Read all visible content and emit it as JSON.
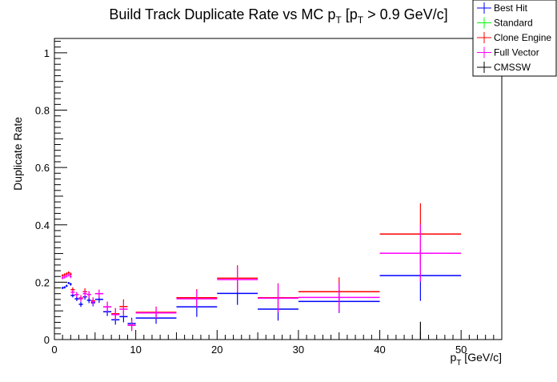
{
  "chart_data": {
    "type": "scatter",
    "title": "Build Track Duplicate Rate vs MC p_T [p_T > 0.9 GeV/c]",
    "title_parts": {
      "a": "Build Track Duplicate Rate vs MC p",
      "sub1": "T",
      "b": " [p",
      "sub2": "T",
      "c": " > 0.9 GeV/c]"
    },
    "xlabel": "p_T [GeV/c]",
    "xlabel_parts": {
      "a": "p",
      "sub": "T",
      "b": " [GeV/c]"
    },
    "ylabel": "Duplicate Rate",
    "xlim": [
      0,
      55
    ],
    "ylim": [
      0,
      1.05
    ],
    "xticks": [
      0,
      10,
      20,
      30,
      40,
      50
    ],
    "xtick_labels": [
      "0",
      "10",
      "20",
      "30",
      "40",
      "50"
    ],
    "yticks": [
      0,
      0.2,
      0.4,
      0.6,
      0.8,
      1
    ],
    "ytick_labels": [
      "0",
      "0.2",
      "0.4",
      "0.6",
      "0.8",
      "1"
    ],
    "grid": false,
    "legend_position": "top-right",
    "x": [
      1.0,
      1.25,
      1.5,
      1.75,
      2.0,
      2.25,
      2.75,
      3.25,
      3.75,
      4.25,
      4.75,
      5.5,
      6.5,
      7.5,
      8.5,
      9.5,
      12.5,
      17.5,
      22.5,
      27.5,
      35,
      45
    ],
    "xerr": [
      0.125,
      0.125,
      0.125,
      0.125,
      0.125,
      0.25,
      0.25,
      0.25,
      0.25,
      0.25,
      0.25,
      0.5,
      0.5,
      0.5,
      0.5,
      0.5,
      2.5,
      2.5,
      2.5,
      2.5,
      5,
      5
    ],
    "series": [
      {
        "name": "Best Hit",
        "color": "#0000ff",
        "values": [
          0.18,
          0.182,
          0.187,
          0.197,
          0.193,
          0.154,
          0.142,
          0.123,
          0.149,
          0.137,
          0.128,
          0.14,
          0.097,
          0.069,
          0.08,
          0.056,
          0.075,
          0.114,
          0.161,
          0.106,
          0.133,
          0.223
        ],
        "errors": [
          0.004,
          0.004,
          0.004,
          0.004,
          0.005,
          0.007,
          0.008,
          0.009,
          0.01,
          0.01,
          0.012,
          0.012,
          0.015,
          0.017,
          0.02,
          0.02,
          0.02,
          0.035,
          0.04,
          0.04,
          0.04,
          0.088
        ]
      },
      {
        "name": "Standard",
        "color": "#00ff00",
        "values": [],
        "errors": []
      },
      {
        "name": "Clone Engine",
        "color": "#ff0000",
        "values": [
          0.223,
          0.226,
          0.229,
          0.233,
          0.228,
          0.174,
          0.157,
          0.145,
          0.167,
          0.157,
          0.135,
          0.16,
          0.114,
          0.09,
          0.115,
          0.05,
          0.095,
          0.146,
          0.214,
          0.146,
          0.167,
          0.368
        ],
        "errors": [
          0.005,
          0.005,
          0.005,
          0.005,
          0.006,
          0.008,
          0.009,
          0.01,
          0.012,
          0.012,
          0.012,
          0.014,
          0.018,
          0.02,
          0.025,
          0.02,
          0.02,
          0.03,
          0.045,
          0.05,
          0.05,
          0.107
        ]
      },
      {
        "name": "Full Vector",
        "color": "#ff00ff",
        "values": [
          0.215,
          0.218,
          0.221,
          0.225,
          0.22,
          0.165,
          0.157,
          0.142,
          0.16,
          0.157,
          0.132,
          0.16,
          0.114,
          0.087,
          0.106,
          0.05,
          0.093,
          0.142,
          0.209,
          0.144,
          0.147,
          0.301
        ],
        "errors": [
          0.005,
          0.005,
          0.005,
          0.005,
          0.006,
          0.008,
          0.009,
          0.01,
          0.012,
          0.012,
          0.012,
          0.014,
          0.018,
          0.02,
          0.025,
          0.02,
          0.02,
          0.03,
          0.045,
          0.05,
          0.05,
          0.1
        ]
      },
      {
        "name": "CMSSW",
        "color": "#000000",
        "x": [
          45
        ],
        "xerr": [
          0
        ],
        "values": [
          0.0
        ],
        "errors": [
          0.062
        ]
      }
    ]
  }
}
